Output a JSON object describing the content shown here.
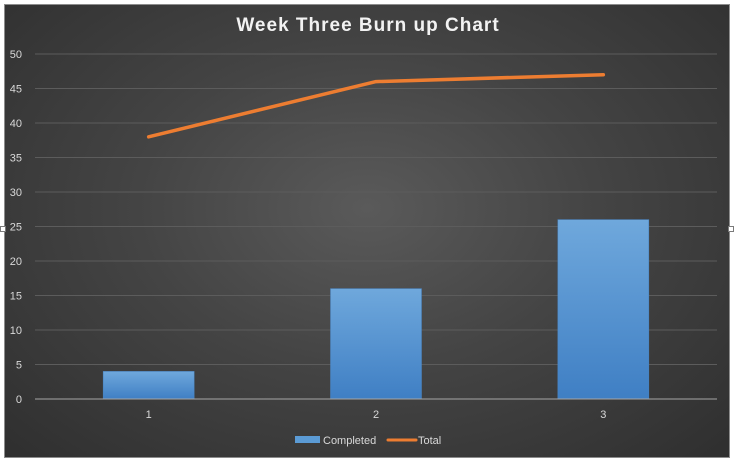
{
  "chart_data": {
    "type": "bar",
    "title": "Week Three Burn up Chart",
    "xlabel": "",
    "ylabel": "",
    "categories": [
      "1",
      "2",
      "3"
    ],
    "ylim": [
      0,
      50
    ],
    "yticks": [
      0,
      5,
      10,
      15,
      20,
      25,
      30,
      35,
      40,
      45,
      50
    ],
    "grid": true,
    "legend_position": "bottom",
    "series": [
      {
        "name": "Completed",
        "type": "bar",
        "values": [
          4,
          16,
          26
        ],
        "color": "#5b9bd5"
      },
      {
        "name": "Total",
        "type": "line",
        "values": [
          38,
          46,
          47
        ],
        "color": "#ed7d31"
      }
    ]
  },
  "colors": {
    "background": "#404040",
    "grid": "#5c5c5c",
    "axis": "#a6a6a6",
    "text": "#d9d9d9"
  }
}
